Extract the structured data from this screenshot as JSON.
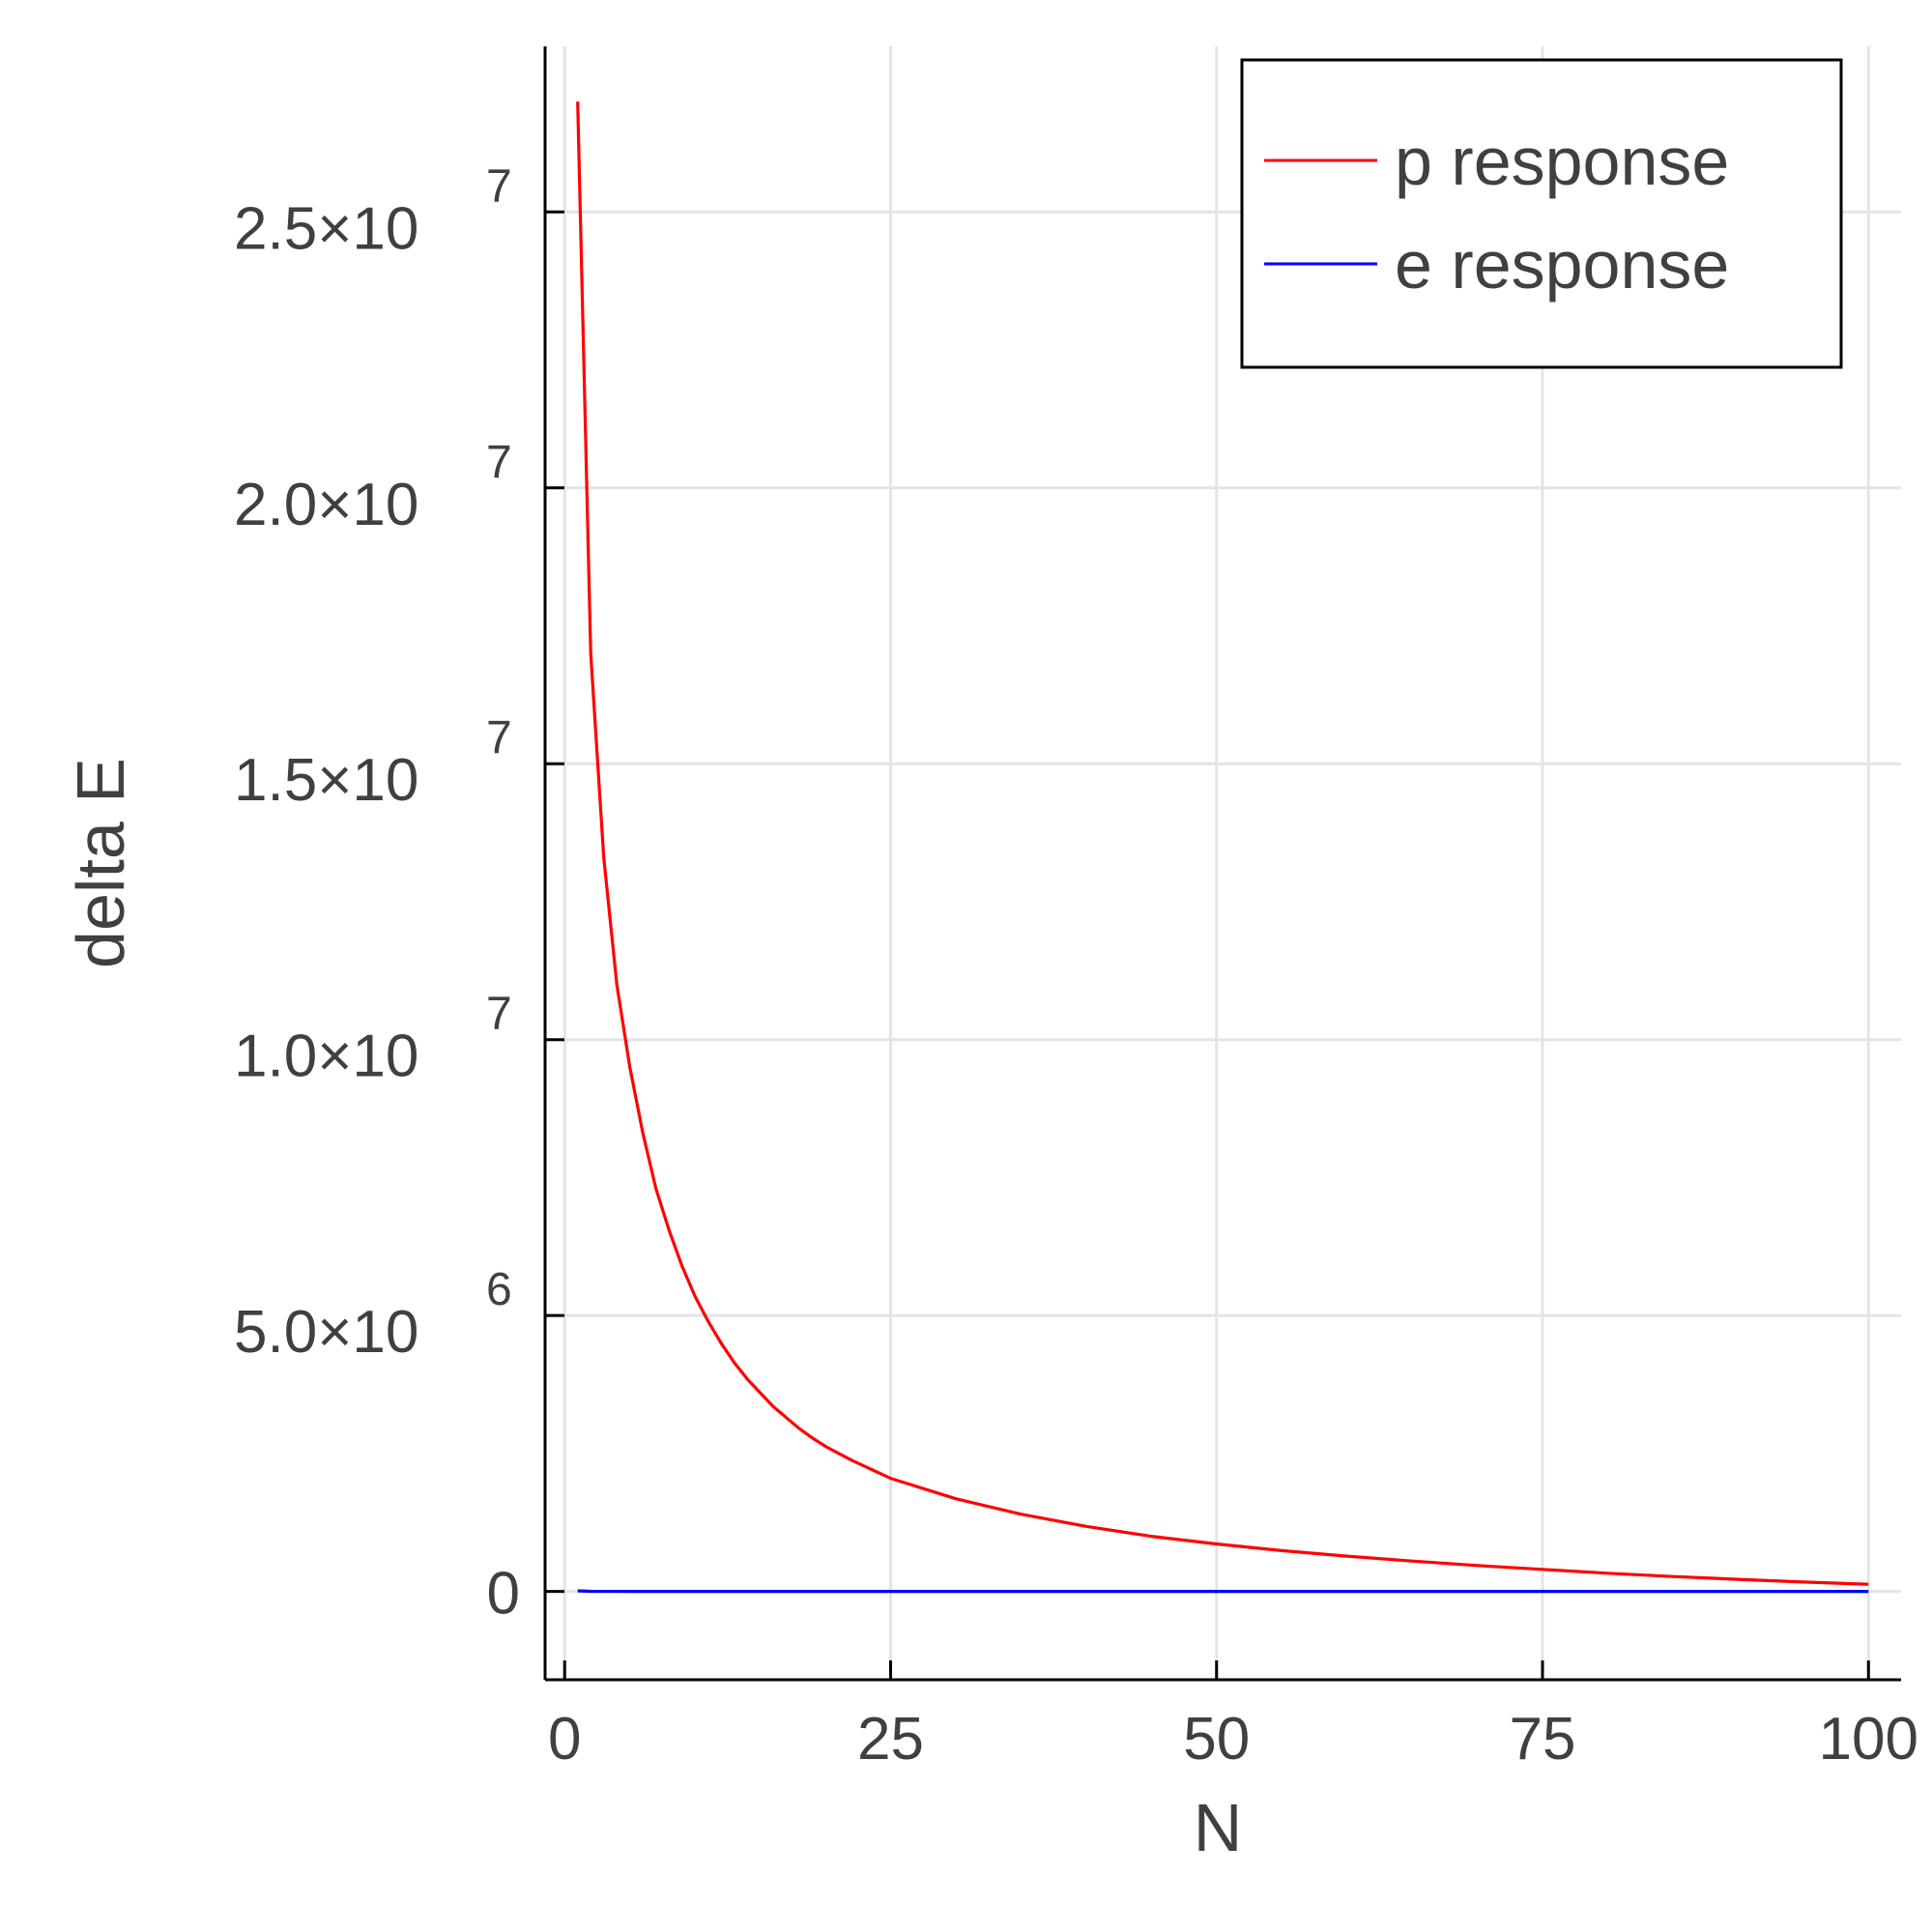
{
  "chart_data": {
    "type": "line",
    "title": "",
    "xlabel": "N",
    "ylabel": "delta E",
    "xlim": [
      -1.5,
      102.5
    ],
    "ylim": [
      -1600000,
      28000000
    ],
    "grid": true,
    "legend_position": "top-right",
    "x_ticks": [
      {
        "value": 0,
        "label": "0"
      },
      {
        "value": 25,
        "label": "25"
      },
      {
        "value": 50,
        "label": "50"
      },
      {
        "value": 75,
        "label": "75"
      },
      {
        "value": 100,
        "label": "100"
      }
    ],
    "y_ticks": [
      {
        "value": 0,
        "mantissa": "0",
        "exponent": ""
      },
      {
        "value": 5000000,
        "mantissa": "5.0×10",
        "exponent": "6"
      },
      {
        "value": 10000000,
        "mantissa": "1.0×10",
        "exponent": "7"
      },
      {
        "value": 15000000,
        "mantissa": "1.5×10",
        "exponent": "7"
      },
      {
        "value": 20000000,
        "mantissa": "2.0×10",
        "exponent": "7"
      },
      {
        "value": 25000000,
        "mantissa": "2.5×10",
        "exponent": "7"
      }
    ],
    "series": [
      {
        "name": "p response",
        "color": "#ff0000",
        "x": [
          1,
          2,
          3,
          4,
          5,
          6,
          7,
          8,
          9,
          10,
          11,
          12,
          13,
          14,
          15,
          16,
          17,
          18,
          19,
          20,
          22,
          25,
          30,
          35,
          40,
          45,
          50,
          55,
          60,
          65,
          70,
          75,
          80,
          85,
          90,
          95,
          100
        ],
        "y": [
          27000000,
          17000000,
          13300000,
          11000000,
          9500000,
          8300000,
          7300000,
          6550000,
          5900000,
          5350000,
          4900000,
          4500000,
          4150000,
          3850000,
          3600000,
          3350000,
          3150000,
          2950000,
          2780000,
          2630000,
          2380000,
          2050000,
          1680000,
          1400000,
          1180000,
          1000000,
          860000,
          740000,
          640000,
          550000,
          470000,
          400000,
          330000,
          270000,
          220000,
          170000,
          130000
        ]
      },
      {
        "name": "e response",
        "color": "#0000ff",
        "x": [
          1,
          2,
          5,
          25,
          50,
          75,
          100
        ],
        "y": [
          12000,
          3000,
          1000,
          200,
          100,
          50,
          30
        ]
      }
    ]
  }
}
